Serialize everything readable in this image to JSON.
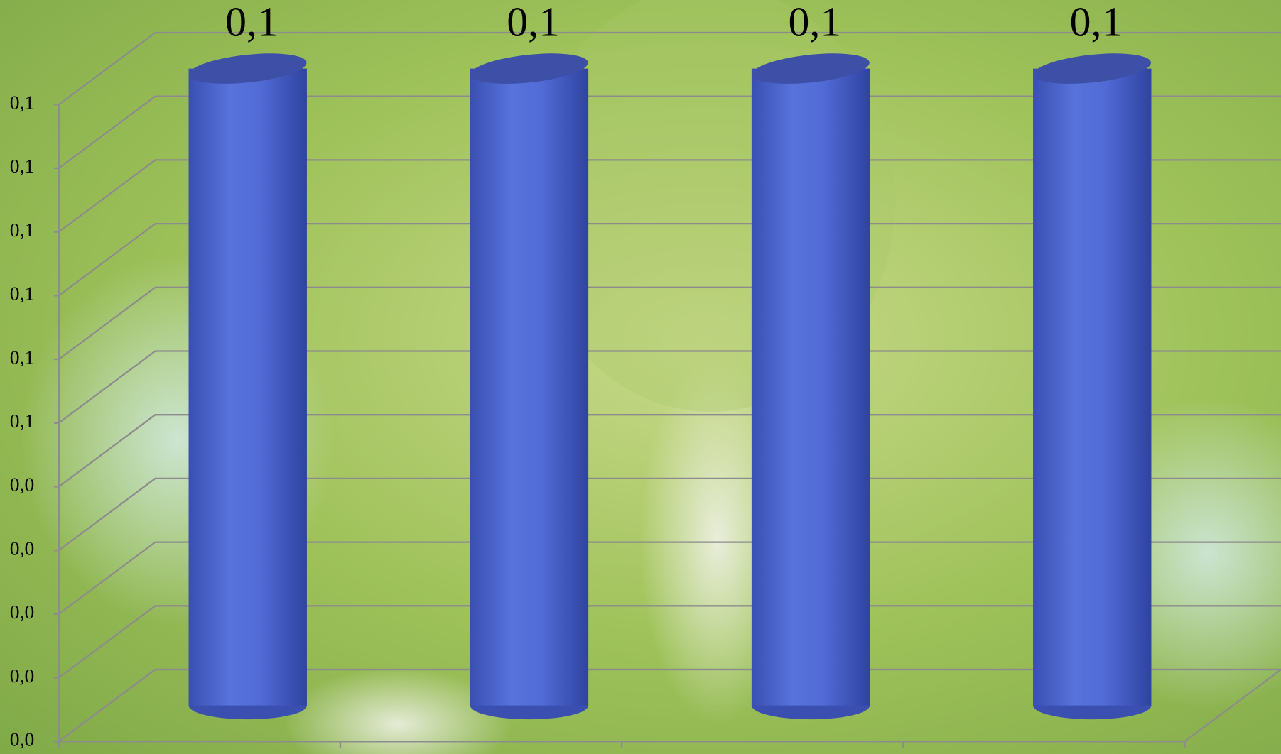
{
  "chart_data": {
    "type": "bar3d",
    "categories": [
      null,
      null,
      null,
      null
    ],
    "values": [
      0.1,
      0.1,
      0.1,
      0.1
    ],
    "value_labels": [
      "0,1",
      "0,1",
      "0,1",
      "0,1"
    ],
    "color": "#4f68d4",
    "ylim": [
      0,
      0.1
    ],
    "yticks": [
      {
        "value": 0,
        "label": "0,0"
      },
      {
        "value": 0.01,
        "label": "0,0"
      },
      {
        "value": 0.02,
        "label": "0,0"
      },
      {
        "value": 0.03,
        "label": "0,0"
      },
      {
        "value": 0.04,
        "label": "0,0"
      },
      {
        "value": 0.05,
        "label": "0,1"
      },
      {
        "value": 0.06,
        "label": "0,1"
      },
      {
        "value": 0.07,
        "label": "0,1"
      },
      {
        "value": 0.08,
        "label": "0,1"
      },
      {
        "value": 0.09,
        "label": "0,1"
      },
      {
        "value": 0.1,
        "label": "0,1"
      }
    ],
    "grid": true
  }
}
